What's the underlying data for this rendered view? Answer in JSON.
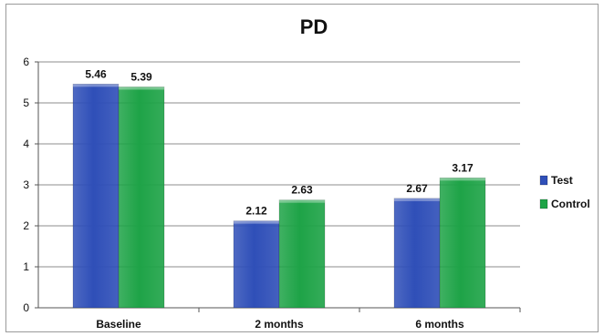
{
  "chart_data": {
    "type": "bar",
    "title": "PD",
    "categories": [
      "Baseline",
      "2 months",
      "6 months"
    ],
    "series": [
      {
        "name": "Test",
        "values": [
          5.46,
          2.12,
          2.67
        ],
        "color": "#2f4fb8"
      },
      {
        "name": "Control",
        "values": [
          5.39,
          2.63,
          3.17
        ],
        "color": "#1ea347"
      }
    ],
    "data_labels": [
      [
        "5.46",
        "2.12",
        "2.67"
      ],
      [
        "5.39",
        "2.63",
        "3.17"
      ]
    ],
    "ylim": [
      0,
      6
    ],
    "y_ticks": [
      0,
      1,
      2,
      3,
      4,
      5,
      6
    ],
    "xlabel": "",
    "ylabel": "",
    "grid": true,
    "legend_position": "right"
  }
}
